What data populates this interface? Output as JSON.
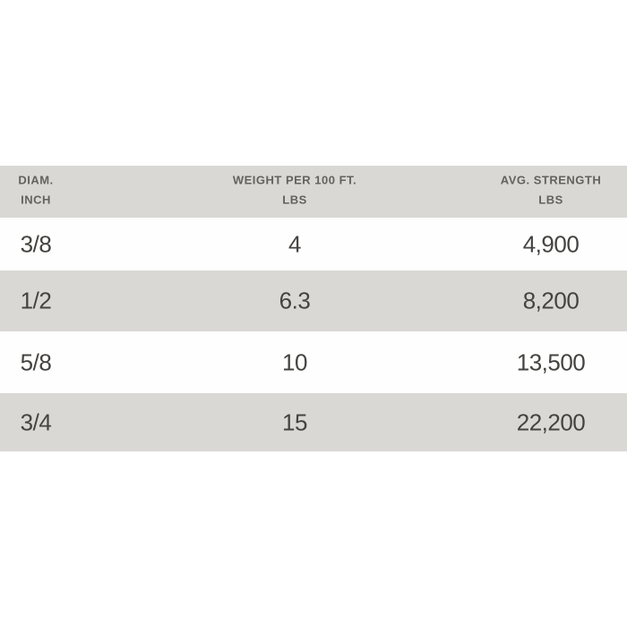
{
  "table": {
    "header": {
      "col1_line1": "DIAM.",
      "col1_line2": "INCH",
      "col2_line1": "WEIGHT PER 100 FT.",
      "col2_line2": "LBS",
      "col3_line1": "AVG. STRENGTH",
      "col3_line2": "LBS"
    },
    "rows": [
      {
        "diam": "3/8",
        "weight": "4",
        "strength": "4,900"
      },
      {
        "diam": "1/2",
        "weight": "6.3",
        "strength": "8,200"
      },
      {
        "diam": "5/8",
        "weight": "10",
        "strength": "13,500"
      },
      {
        "diam": "3/4",
        "weight": "15",
        "strength": "22,200"
      }
    ],
    "colors": {
      "band_gray": "#d9d8d5",
      "row_white": "#fefefe",
      "header_text": "#63625d",
      "data_text": "#454340",
      "page_background": "#ffffff"
    }
  },
  "chart_data": {
    "type": "table",
    "title": "",
    "columns": [
      "DIAM. INCH",
      "WEIGHT PER 100 FT. LBS",
      "AVG. STRENGTH LBS"
    ],
    "rows": [
      [
        "3/8",
        "4",
        "4,900"
      ],
      [
        "1/2",
        "6.3",
        "8,200"
      ],
      [
        "5/8",
        "10",
        "13,500"
      ],
      [
        "3/4",
        "15",
        "22,200"
      ]
    ],
    "layout": "alternating gray/white row bands, no cell borders, header band gray"
  }
}
